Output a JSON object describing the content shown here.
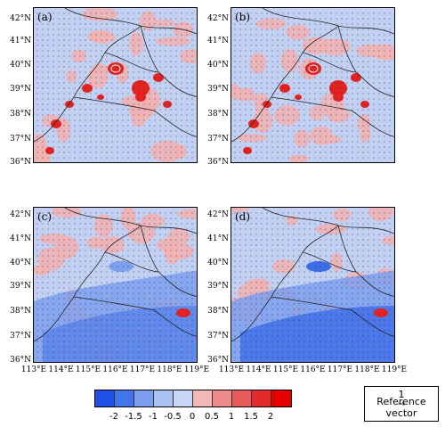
{
  "panels": [
    {
      "label": "(a)",
      "style": "warm"
    },
    {
      "label": "(b)",
      "style": "warm"
    },
    {
      "label": "(c)",
      "style": "cool"
    },
    {
      "label": "(d)",
      "style": "cool"
    }
  ],
  "lat_labels": [
    "42°N",
    "41°N",
    "40°N",
    "39°N",
    "38°N",
    "37°N",
    "36°N"
  ],
  "lon_labels": [
    "113°E",
    "114°E",
    "115°E",
    "116°E",
    "117°E",
    "118°E",
    "119°E"
  ],
  "colorbar": {
    "colors": [
      "#1f4fe6",
      "#4275ea",
      "#7a9ef0",
      "#a9c0f3",
      "#c7d6f6",
      "#f5b8b8",
      "#f08a8a",
      "#e95a5a",
      "#e32b2b",
      "#e60000"
    ],
    "ticks": [
      "-2",
      "-1.5",
      "-1",
      "-0.5",
      "0",
      "0.5",
      "1",
      "1.5",
      "2"
    ]
  },
  "reference": {
    "magnitude": "1",
    "arrow": "→",
    "label": "Reference vector"
  },
  "colors": {
    "base": "#c2d1f3",
    "warm_light": "#f1b2b2",
    "warm_dark": "#e42222",
    "cool_mid": "#7d9fef",
    "cool_dark": "#3c6de8"
  }
}
